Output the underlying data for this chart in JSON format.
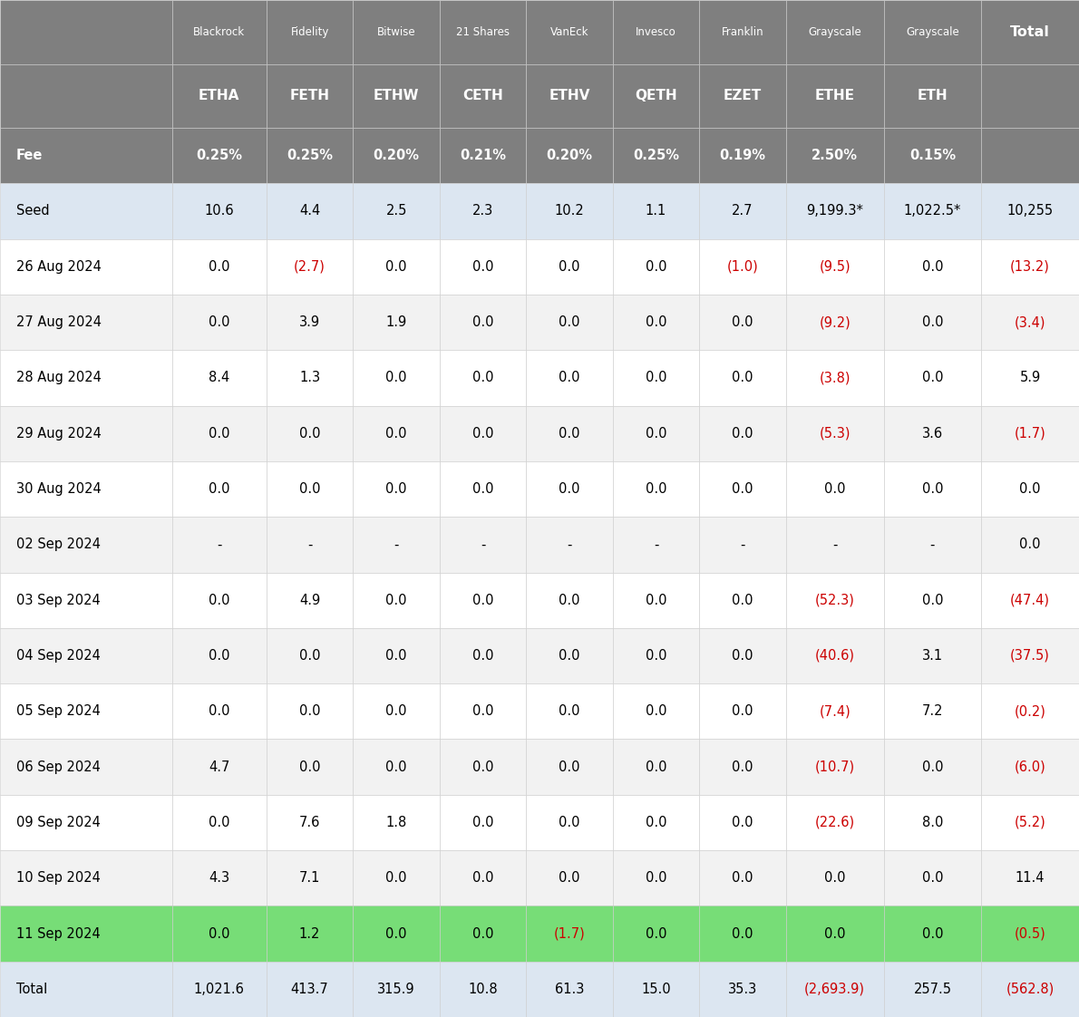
{
  "header_row1": [
    "",
    "Blackrock",
    "Fidelity",
    "Bitwise",
    "21 Shares",
    "VanEck",
    "Invesco",
    "Franklin",
    "Grayscale",
    "Grayscale",
    "Total"
  ],
  "header_row2": [
    "",
    "ETHA",
    "FETH",
    "ETHW",
    "CETH",
    "ETHV",
    "QETH",
    "EZET",
    "ETHE",
    "ETH",
    ""
  ],
  "fee_row": [
    "Fee",
    "0.25%",
    "0.25%",
    "0.20%",
    "0.21%",
    "0.20%",
    "0.25%",
    "0.19%",
    "2.50%",
    "0.15%",
    ""
  ],
  "rows": [
    [
      "Seed",
      "10.6",
      "4.4",
      "2.5",
      "2.3",
      "10.2",
      "1.1",
      "2.7",
      "9,199.3*",
      "1,022.5*",
      "10,255"
    ],
    [
      "26 Aug 2024",
      "0.0",
      "(2.7)",
      "0.0",
      "0.0",
      "0.0",
      "0.0",
      "(1.0)",
      "(9.5)",
      "0.0",
      "(13.2)"
    ],
    [
      "27 Aug 2024",
      "0.0",
      "3.9",
      "1.9",
      "0.0",
      "0.0",
      "0.0",
      "0.0",
      "(9.2)",
      "0.0",
      "(3.4)"
    ],
    [
      "28 Aug 2024",
      "8.4",
      "1.3",
      "0.0",
      "0.0",
      "0.0",
      "0.0",
      "0.0",
      "(3.8)",
      "0.0",
      "5.9"
    ],
    [
      "29 Aug 2024",
      "0.0",
      "0.0",
      "0.0",
      "0.0",
      "0.0",
      "0.0",
      "0.0",
      "(5.3)",
      "3.6",
      "(1.7)"
    ],
    [
      "30 Aug 2024",
      "0.0",
      "0.0",
      "0.0",
      "0.0",
      "0.0",
      "0.0",
      "0.0",
      "0.0",
      "0.0",
      "0.0"
    ],
    [
      "02 Sep 2024",
      "-",
      "-",
      "-",
      "-",
      "-",
      "-",
      "-",
      "-",
      "-",
      "0.0"
    ],
    [
      "03 Sep 2024",
      "0.0",
      "4.9",
      "0.0",
      "0.0",
      "0.0",
      "0.0",
      "0.0",
      "(52.3)",
      "0.0",
      "(47.4)"
    ],
    [
      "04 Sep 2024",
      "0.0",
      "0.0",
      "0.0",
      "0.0",
      "0.0",
      "0.0",
      "0.0",
      "(40.6)",
      "3.1",
      "(37.5)"
    ],
    [
      "05 Sep 2024",
      "0.0",
      "0.0",
      "0.0",
      "0.0",
      "0.0",
      "0.0",
      "0.0",
      "(7.4)",
      "7.2",
      "(0.2)"
    ],
    [
      "06 Sep 2024",
      "4.7",
      "0.0",
      "0.0",
      "0.0",
      "0.0",
      "0.0",
      "0.0",
      "(10.7)",
      "0.0",
      "(6.0)"
    ],
    [
      "09 Sep 2024",
      "0.0",
      "7.6",
      "1.8",
      "0.0",
      "0.0",
      "0.0",
      "0.0",
      "(22.6)",
      "8.0",
      "(5.2)"
    ],
    [
      "10 Sep 2024",
      "4.3",
      "7.1",
      "0.0",
      "0.0",
      "0.0",
      "0.0",
      "0.0",
      "0.0",
      "0.0",
      "11.4"
    ],
    [
      "11 Sep 2024",
      "0.0",
      "1.2",
      "0.0",
      "0.0",
      "(1.7)",
      "0.0",
      "0.0",
      "0.0",
      "0.0",
      "(0.5)"
    ],
    [
      "Total",
      "1,021.6",
      "413.7",
      "315.9",
      "10.8",
      "61.3",
      "15.0",
      "35.3",
      "(2,693.9)",
      "257.5",
      "(562.8)"
    ]
  ],
  "negative_set": [
    "(2.7)",
    "(1.0)",
    "(9.5)",
    "(13.2)",
    "(9.2)",
    "(3.4)",
    "(3.8)",
    "(5.3)",
    "(1.7)",
    "(47.4)",
    "(52.3)",
    "(40.6)",
    "(37.5)",
    "(7.4)",
    "(0.2)",
    "(10.7)",
    "(6.0)",
    "(22.6)",
    "(5.2)",
    "(0.5)",
    "(2,693.9)",
    "(562.8)"
  ],
  "header_bg": "#7f7f7f",
  "header_text_color": "#ffffff",
  "seed_bg": "#dce6f1",
  "row_bg_light": "#f2f2f2",
  "row_bg_white": "#ffffff",
  "highlight_bg": "#77dd77",
  "total_bg": "#dce6f1",
  "negative_color": "#cc0000",
  "positive_color": "#000000",
  "border_color": "#cccccc",
  "col_widths_raw": [
    1.55,
    0.85,
    0.78,
    0.78,
    0.78,
    0.78,
    0.78,
    0.78,
    0.88,
    0.88,
    0.88
  ],
  "highlight_row_label": "11 Sep 2024",
  "figwidth": 11.9,
  "figheight": 11.22,
  "dpi": 100
}
